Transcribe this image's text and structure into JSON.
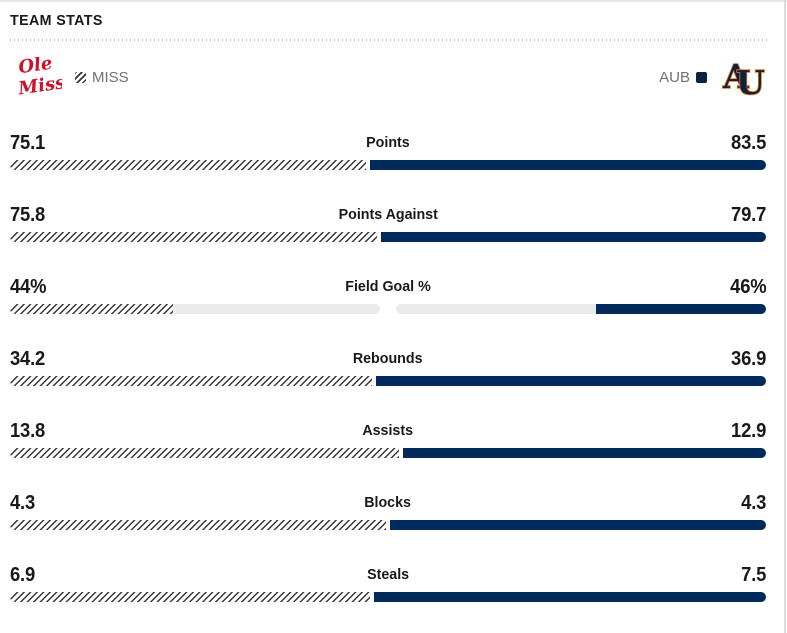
{
  "header": {
    "title": "TEAM STATS"
  },
  "teams": {
    "away": {
      "abbr": "MISS",
      "logo_icon": "ole-miss-script-logo",
      "logo_lines": [
        "Ole",
        "Miss"
      ],
      "pattern": "diagonal-hatch"
    },
    "home": {
      "abbr": "AUB",
      "logo_icon": "auburn-au-logo",
      "logo_letters": [
        "A",
        "U"
      ]
    }
  },
  "colors": {
    "bar_navy": "#00295c",
    "track_gray": "#e9ebed",
    "hatch_stripe": "#33363a",
    "auburn_navy": "#0c2340",
    "auburn_orange": "#e87722",
    "olemiss_red": "#ce1126",
    "muted_text": "#6e7276",
    "text_dark": "#17191b"
  },
  "stats": {
    "rows": [
      {
        "label": "Points",
        "away": "75.1",
        "home": "83.5",
        "away_num": 75.1,
        "home_num": 83.5,
        "type": "split"
      },
      {
        "label": "Points Against",
        "away": "75.8",
        "home": "79.7",
        "away_num": 75.8,
        "home_num": 79.7,
        "type": "split"
      },
      {
        "label": "Field Goal %",
        "away": "44%",
        "home": "46%",
        "away_num": 44,
        "home_num": 46,
        "type": "percent"
      },
      {
        "label": "Rebounds",
        "away": "34.2",
        "home": "36.9",
        "away_num": 34.2,
        "home_num": 36.9,
        "type": "split"
      },
      {
        "label": "Assists",
        "away": "13.8",
        "home": "12.9",
        "away_num": 13.8,
        "home_num": 12.9,
        "type": "split"
      },
      {
        "label": "Blocks",
        "away": "4.3",
        "home": "4.3",
        "away_num": 4.3,
        "home_num": 4.3,
        "type": "split"
      },
      {
        "label": "Steals",
        "away": "6.9",
        "home": "7.5",
        "away_num": 6.9,
        "home_num": 7.5,
        "type": "split"
      }
    ]
  },
  "chart_data": {
    "type": "bar",
    "title": "TEAM STATS",
    "categories": [
      "Points",
      "Points Against",
      "Field Goal %",
      "Rebounds",
      "Assists",
      "Blocks",
      "Steals"
    ],
    "series": [
      {
        "name": "MISS",
        "values": [
          75.1,
          75.8,
          44,
          34.2,
          13.8,
          4.3,
          6.9
        ]
      },
      {
        "name": "AUB",
        "values": [
          83.5,
          79.7,
          46,
          36.9,
          12.9,
          4.3,
          7.5
        ]
      }
    ],
    "legend_position": "top",
    "grid": false,
    "note": "paired horizontal comparison bars; Field Goal % rendered as fill-percentage of each half-track, other rows as proportional split"
  }
}
